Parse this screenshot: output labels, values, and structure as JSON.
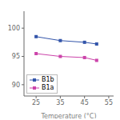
{
  "chart_data": {
    "type": "line",
    "x_label": "Temperature (°C)",
    "x": [
      25,
      35,
      45,
      50
    ],
    "series": [
      {
        "name": "B1b",
        "color": "#3355aa",
        "marker": "square",
        "values": [
          98.5,
          97.8,
          97.5,
          97.2
        ]
      },
      {
        "name": "B1a",
        "color": "#cc44aa",
        "marker": "square",
        "values": [
          95.5,
          95.0,
          94.8,
          94.3
        ]
      }
    ],
    "xlim": [
      20,
      57
    ],
    "ylim": [
      88,
      103
    ],
    "xticks": [
      25,
      35,
      45,
      55
    ],
    "yticks": [
      90,
      95,
      100
    ],
    "legend": "lower left",
    "grid": false
  }
}
